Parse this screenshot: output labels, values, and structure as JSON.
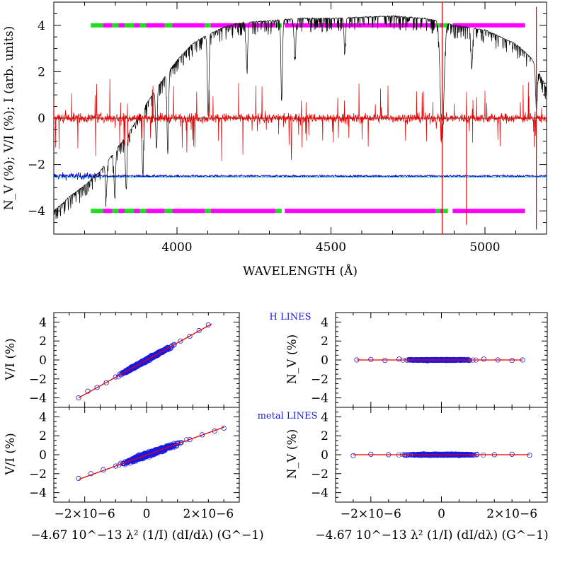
{
  "chart_data": [
    {
      "type": "line",
      "panel": "top",
      "xlabel": "WAVELENGTH (Å)",
      "ylabel": "N_V (%); V/I (%); I (arb. units)",
      "xlim": [
        3600,
        5200
      ],
      "ylim": [
        -5,
        5
      ],
      "xticks": [
        4000,
        4500,
        5000
      ],
      "yticks": [
        -4,
        -2,
        0,
        2,
        4
      ],
      "xtick_labels": [
        "4000",
        "4500",
        "5000"
      ],
      "ytick_labels": [
        "−4",
        "−2",
        "0",
        "2",
        "4"
      ],
      "series": [
        {
          "color": "#000000",
          "style": "intensity spectrum",
          "x": [
            3600,
            3650,
            3700,
            3750,
            3800,
            3850,
            3900,
            3950,
            4000,
            4050,
            4100,
            4150,
            4200,
            4300,
            4400,
            4500,
            4600,
            4700,
            4800,
            4850,
            4900,
            5000,
            5050,
            5100,
            5150,
            5200
          ],
          "y": [
            -4.0,
            -3.4,
            -2.9,
            -2.3,
            -1.4,
            -0.5,
            0.6,
            1.6,
            2.5,
            3.2,
            3.6,
            3.9,
            4.1,
            4.2,
            4.3,
            4.3,
            4.35,
            4.4,
            4.3,
            4.2,
            4.0,
            3.8,
            3.5,
            3.2,
            2.6,
            1.3
          ]
        },
        {
          "color": "#e60000",
          "style": "V/I spectrum",
          "x": [
            3600,
            5200
          ],
          "y": [
            0,
            0
          ]
        },
        {
          "color": "#0000cc",
          "style": "null spectrum N_V",
          "x": [
            3600,
            5200
          ],
          "y": [
            -2.5,
            -2.5
          ]
        }
      ],
      "mask_levels": [
        4,
        -4
      ],
      "mask_segments": [
        {
          "x0": 3720,
          "x1": 3760,
          "color": "#22dd22"
        },
        {
          "x0": 3760,
          "x1": 3790,
          "color": "#ff00ff"
        },
        {
          "x0": 3790,
          "x1": 3810,
          "color": "#22dd22"
        },
        {
          "x0": 3810,
          "x1": 3830,
          "color": "#ff00ff"
        },
        {
          "x0": 3830,
          "x1": 3860,
          "color": "#22dd22"
        },
        {
          "x0": 3860,
          "x1": 3880,
          "color": "#ff00ff"
        },
        {
          "x0": 3880,
          "x1": 3900,
          "color": "#22dd22"
        },
        {
          "x0": 3900,
          "x1": 3960,
          "color": "#ff00ff"
        },
        {
          "x0": 3960,
          "x1": 3985,
          "color": "#22dd22"
        },
        {
          "x0": 3985,
          "x1": 4090,
          "color": "#ff00ff"
        },
        {
          "x0": 4090,
          "x1": 4110,
          "color": "#22dd22"
        },
        {
          "x0": 4110,
          "x1": 4320,
          "color": "#ff00ff"
        },
        {
          "x0": 4320,
          "x1": 4340,
          "color": "#22dd22"
        },
        {
          "x0": 4340,
          "x1": 4350,
          "color": "#ffffff"
        },
        {
          "x0": 4350,
          "x1": 4840,
          "color": "#ff00ff"
        },
        {
          "x0": 4840,
          "x1": 4855,
          "color": "#22dd22"
        },
        {
          "x0": 4855,
          "x1": 4865,
          "color": "#ff00ff"
        },
        {
          "x0": 4865,
          "x1": 4880,
          "color": "#22dd22"
        },
        {
          "x0": 4880,
          "x1": 4895,
          "color": "#ffffff"
        },
        {
          "x0": 4895,
          "x1": 5130,
          "color": "#ff00ff"
        }
      ]
    },
    {
      "type": "scatter",
      "panel": "left-upper",
      "ylabel": "V/I (%)",
      "xlim": [
        -3e-06,
        3e-06
      ],
      "ylim": [
        -5,
        5
      ],
      "yticks": [
        -4,
        -2,
        0,
        2,
        4
      ],
      "ytick_labels": [
        "−4",
        "−2",
        "0",
        "2",
        "4"
      ],
      "fit_line": {
        "x": [
          -2.2e-06,
          2.1e-06
        ],
        "y": [
          -4.0,
          3.8
        ],
        "color": "#e60000"
      },
      "point_color": "#1a1ae6",
      "x": [
        -2.2e-06,
        -1.9e-06,
        -1.6e-06,
        -1.3e-06,
        -1e-06,
        -7e-07,
        -4e-07,
        -1e-07,
        2e-07,
        5e-07,
        8e-07,
        1.1e-06,
        1.4e-06,
        1.7e-06,
        2e-06
      ],
      "y": [
        -4.0,
        -3.3,
        -2.9,
        -2.4,
        -1.8,
        -1.3,
        -0.7,
        -0.2,
        0.4,
        0.9,
        1.4,
        2.0,
        2.5,
        3.1,
        3.7
      ]
    },
    {
      "type": "scatter",
      "panel": "right-upper",
      "ylabel": "N_V (%)",
      "label": "H LINES",
      "xlim": [
        -3e-06,
        3e-06
      ],
      "ylim": [
        -5,
        5
      ],
      "yticks": [
        -4,
        -2,
        0,
        2,
        4
      ],
      "ytick_labels": [
        "−4",
        "−2",
        "0",
        "2",
        "4"
      ],
      "fit_line": {
        "x": [
          -2.4e-06,
          2.3e-06
        ],
        "y": [
          0,
          0
        ],
        "color": "#e60000"
      },
      "point_color": "#1a1ae6",
      "x": [
        -2.4e-06,
        -2e-06,
        -1.6e-06,
        -1.2e-06,
        -8e-07,
        -4e-07,
        0,
        4e-07,
        8e-07,
        1.2e-06,
        1.6e-06,
        2e-06,
        2.3e-06
      ],
      "y": [
        0,
        0.05,
        -0.05,
        0.1,
        0,
        -0.1,
        0.05,
        0,
        -0.05,
        0.1,
        0,
        -0.05,
        0
      ]
    },
    {
      "type": "scatter",
      "panel": "left-lower",
      "ylabel": "V/I (%)",
      "xlabel": "−4.67 10^−13 λ² (1/I) (dI/dλ) (G^−1)",
      "xlim": [
        -3e-06,
        3e-06
      ],
      "ylim": [
        -5,
        5
      ],
      "xticks": [
        -2e-06,
        0,
        2e-06
      ],
      "xtick_labels": [
        "−2×10−6",
        "0",
        "2×10−6"
      ],
      "yticks": [
        -4,
        -2,
        0,
        2,
        4
      ],
      "ytick_labels": [
        "−4",
        "−2",
        "0",
        "2",
        "4"
      ],
      "fit_line": {
        "x": [
          -2.2e-06,
          2.5e-06
        ],
        "y": [
          -2.6,
          2.9
        ],
        "color": "#e60000"
      },
      "point_color": "#1a1ae6",
      "x": [
        -2.2e-06,
        -1.8e-06,
        -1.4e-06,
        -1e-06,
        -6e-07,
        -2e-07,
        2e-07,
        6e-07,
        1e-06,
        1.4e-06,
        1.8e-06,
        2.2e-06,
        2.5e-06
      ],
      "y": [
        -2.5,
        -2.0,
        -1.6,
        -1.2,
        -0.7,
        -0.2,
        0.3,
        0.7,
        1.2,
        1.6,
        2.1,
        2.5,
        2.8
      ]
    },
    {
      "type": "scatter",
      "panel": "right-lower",
      "ylabel": "N_V (%)",
      "label": "metal LINES",
      "xlabel": "−4.67 10^−13 λ² (1/I) (dI/dλ) (G^−1)",
      "xlim": [
        -3e-06,
        3e-06
      ],
      "ylim": [
        -5,
        5
      ],
      "xticks": [
        -2e-06,
        0,
        2e-06
      ],
      "xtick_labels": [
        "−2×10−6",
        "0",
        "2×10−6"
      ],
      "yticks": [
        -4,
        -2,
        0,
        2,
        4
      ],
      "ytick_labels": [
        "−4",
        "−2",
        "0",
        "2",
        "4"
      ],
      "fit_line": {
        "x": [
          -2.5e-06,
          2.5e-06
        ],
        "y": [
          0,
          0
        ],
        "color": "#e60000"
      },
      "point_color": "#1a1ae6",
      "x": [
        -2.5e-06,
        -2e-06,
        -1.5e-06,
        -1e-06,
        -5e-07,
        0,
        5e-07,
        1e-06,
        1.5e-06,
        2e-06,
        2.5e-06
      ],
      "y": [
        -0.1,
        0.05,
        0,
        -0.05,
        0.1,
        0,
        -0.1,
        0.05,
        0,
        0.05,
        -0.05
      ]
    }
  ]
}
